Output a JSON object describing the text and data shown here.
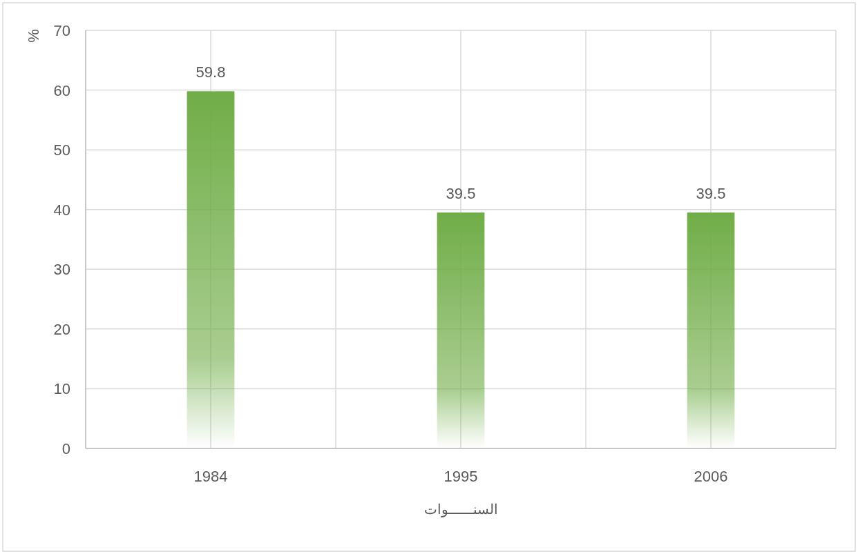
{
  "chart_data": {
    "type": "bar",
    "xlabel": "السنــــــوات",
    "ylabel": "%",
    "categories": [
      "1984",
      "1995",
      "2006"
    ],
    "series": [
      {
        "color": "#70ad47",
        "values": [
          59.8,
          39.5,
          39.5
        ]
      }
    ],
    "ylim": [
      0,
      70
    ],
    "yticks": [
      0,
      10,
      20,
      30,
      40,
      50,
      60,
      70
    ],
    "grid": true,
    "data_labels": true
  }
}
